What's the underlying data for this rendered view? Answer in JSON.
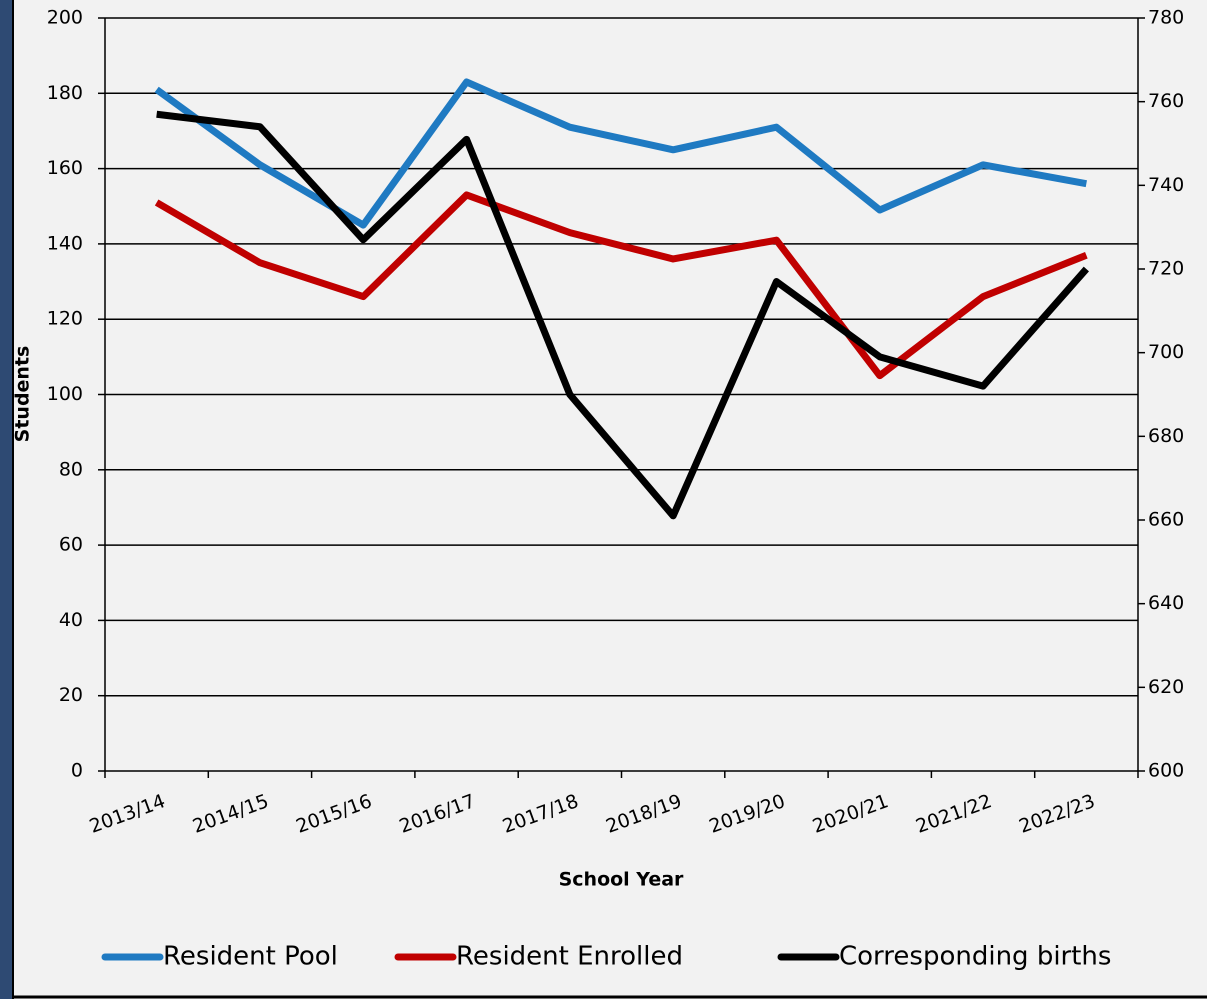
{
  "chart_data": {
    "type": "line",
    "categories": [
      "2013/14",
      "2014/15",
      "2015/16",
      "2016/17",
      "2017/18",
      "2018/19",
      "2019/20",
      "2020/21",
      "2021/22",
      "2022/23"
    ],
    "series": [
      {
        "name": "Resident Pool",
        "color": "#1f7ac2",
        "values": [
          181,
          161,
          145,
          183,
          171,
          165,
          171,
          149,
          161,
          156
        ]
      },
      {
        "name": "Resident Enrolled",
        "color": "#c00000",
        "values": [
          151,
          135,
          126,
          153,
          143,
          136,
          141,
          105,
          126,
          137
        ]
      },
      {
        "name": "Corresponding births",
        "color": "#000000",
        "axis": "y2",
        "values": [
          757,
          754,
          727,
          751,
          690,
          661,
          717,
          699,
          692,
          720
        ]
      }
    ],
    "ylim": [
      0,
      200
    ],
    "yticks": [
      0,
      20,
      40,
      60,
      80,
      100,
      120,
      140,
      160,
      180,
      200
    ],
    "y2lim": [
      600,
      780
    ],
    "y2ticks": [
      600,
      620,
      640,
      660,
      680,
      700,
      720,
      740,
      760,
      780
    ],
    "ylabel": "Students",
    "xlabel": "School Year",
    "grid": true,
    "legend": "bottom"
  }
}
